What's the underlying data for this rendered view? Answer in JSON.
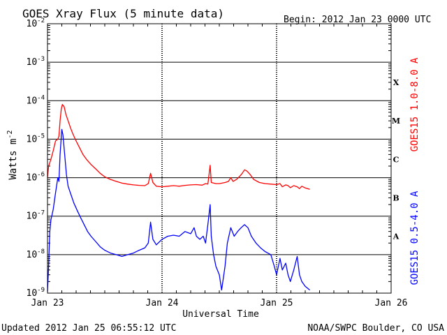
{
  "chart_data": {
    "type": "line",
    "title": "GOES Xray Flux (5 minute data)",
    "begin_label": "Begin:  2012 Jan 23 0000 UTC",
    "xlabel": "Universal Time",
    "ylabel_base": "Watts m",
    "ylabel_exp": "-2",
    "updated_label": "Updated 2012 Jan 25 06:55:12 UTC",
    "credit_label": "NOAA/SWPC Boulder, CO USA",
    "y_scale": "log",
    "ylim": [
      1e-09,
      0.01
    ],
    "xlim": [
      "2012-01-23",
      "2012-01-26"
    ],
    "grid": "horizontal lines at each decade; dashed vertical lines at day boundaries",
    "x_ticks": [
      {
        "label": "Jan 23",
        "day": 0
      },
      {
        "label": "Jan 24",
        "day": 1
      },
      {
        "label": "Jan 25",
        "day": 2
      },
      {
        "label": "Jan 26",
        "day": 3
      }
    ],
    "y_ticks": [
      {
        "base": "10",
        "exp": "-2",
        "value": 0.01
      },
      {
        "base": "10",
        "exp": "-3",
        "value": 0.001
      },
      {
        "base": "10",
        "exp": "-4",
        "value": 0.0001
      },
      {
        "base": "10",
        "exp": "-5",
        "value": 1e-05
      },
      {
        "base": "10",
        "exp": "-6",
        "value": 1e-06
      },
      {
        "base": "10",
        "exp": "-7",
        "value": 1e-07
      },
      {
        "base": "10",
        "exp": "-8",
        "value": 1e-08
      },
      {
        "base": "10",
        "exp": "-9",
        "value": 1e-09
      }
    ],
    "flare_classes": [
      {
        "label": "X",
        "value": 0.0003
      },
      {
        "label": "M",
        "value": 3e-05
      },
      {
        "label": "C",
        "value": 3e-06
      },
      {
        "label": "B",
        "value": 3e-07
      },
      {
        "label": "A",
        "value": 3e-08
      }
    ],
    "series": [
      {
        "name": "GOES15 1.0-8.0 A",
        "color": "#ff0000",
        "x_unit": "days since 2012-01-23 00:00 UTC",
        "points": [
          [
            0.0,
            1e-06
          ],
          [
            0.01,
            2e-06
          ],
          [
            0.03,
            3e-06
          ],
          [
            0.05,
            5e-06
          ],
          [
            0.07,
            9e-06
          ],
          [
            0.09,
            1e-05
          ],
          [
            0.1,
            1.2e-05
          ],
          [
            0.11,
            3e-05
          ],
          [
            0.12,
            6e-05
          ],
          [
            0.13,
            8e-05
          ],
          [
            0.145,
            7e-05
          ],
          [
            0.16,
            4.5e-05
          ],
          [
            0.18,
            3e-05
          ],
          [
            0.2,
            2e-05
          ],
          [
            0.22,
            1.4e-05
          ],
          [
            0.25,
            9e-06
          ],
          [
            0.28,
            6e-06
          ],
          [
            0.31,
            4e-06
          ],
          [
            0.34,
            3e-06
          ],
          [
            0.38,
            2.2e-06
          ],
          [
            0.42,
            1.7e-06
          ],
          [
            0.46,
            1.3e-06
          ],
          [
            0.5,
            1.05e-06
          ],
          [
            0.55,
            9e-07
          ],
          [
            0.6,
            8e-07
          ],
          [
            0.65,
            7.2e-07
          ],
          [
            0.7,
            6.8e-07
          ],
          [
            0.75,
            6.5e-07
          ],
          [
            0.8,
            6.3e-07
          ],
          [
            0.85,
            6.2e-07
          ],
          [
            0.88,
            7e-07
          ],
          [
            0.9,
            1.3e-06
          ],
          [
            0.92,
            7.5e-07
          ],
          [
            0.95,
            6e-07
          ],
          [
            1.0,
            5.8e-07
          ],
          [
            1.05,
            6e-07
          ],
          [
            1.1,
            6.2e-07
          ],
          [
            1.15,
            6e-07
          ],
          [
            1.2,
            6.3e-07
          ],
          [
            1.25,
            6.5e-07
          ],
          [
            1.3,
            6.6e-07
          ],
          [
            1.35,
            6.4e-07
          ],
          [
            1.38,
            7e-07
          ],
          [
            1.4,
            6.8e-07
          ],
          [
            1.42,
            2.1e-06
          ],
          [
            1.43,
            7.5e-07
          ],
          [
            1.47,
            7e-07
          ],
          [
            1.5,
            7e-07
          ],
          [
            1.55,
            7.5e-07
          ],
          [
            1.58,
            8e-07
          ],
          [
            1.6,
            1e-06
          ],
          [
            1.62,
            8e-07
          ],
          [
            1.65,
            9e-07
          ],
          [
            1.68,
            1.1e-06
          ],
          [
            1.7,
            1.3e-06
          ],
          [
            1.72,
            1.6e-06
          ],
          [
            1.74,
            1.5e-06
          ],
          [
            1.77,
            1.2e-06
          ],
          [
            1.8,
            9e-07
          ],
          [
            1.85,
            7.5e-07
          ],
          [
            1.9,
            7e-07
          ],
          [
            1.95,
            6.8e-07
          ],
          [
            2.0,
            6.6e-07
          ],
          [
            2.03,
            7e-07
          ],
          [
            2.05,
            5.8e-07
          ],
          [
            2.08,
            6.5e-07
          ],
          [
            2.1,
            6.2e-07
          ],
          [
            2.12,
            5.5e-07
          ],
          [
            2.15,
            6.2e-07
          ],
          [
            2.18,
            5.8e-07
          ],
          [
            2.2,
            5.2e-07
          ],
          [
            2.22,
            6e-07
          ],
          [
            2.25,
            5.4e-07
          ],
          [
            2.29,
            5e-07
          ]
        ]
      },
      {
        "name": "GOES15 0.5-4.0 A",
        "color": "#0000ff",
        "x_unit": "days since 2012-01-23 00:00 UTC",
        "points": [
          [
            0.0,
            1.1e-09
          ],
          [
            0.01,
            5e-09
          ],
          [
            0.02,
            4e-08
          ],
          [
            0.03,
            8e-08
          ],
          [
            0.05,
            1.5e-07
          ],
          [
            0.07,
            4e-07
          ],
          [
            0.09,
            1e-06
          ],
          [
            0.1,
            8e-07
          ],
          [
            0.11,
            4e-06
          ],
          [
            0.125,
            1.8e-05
          ],
          [
            0.135,
            1.3e-05
          ],
          [
            0.15,
            4e-06
          ],
          [
            0.165,
            1.2e-06
          ],
          [
            0.18,
            6e-07
          ],
          [
            0.2,
            4e-07
          ],
          [
            0.23,
            2.2e-07
          ],
          [
            0.26,
            1.4e-07
          ],
          [
            0.29,
            9e-08
          ],
          [
            0.32,
            6e-08
          ],
          [
            0.35,
            4e-08
          ],
          [
            0.38,
            3e-08
          ],
          [
            0.42,
            2.2e-08
          ],
          [
            0.46,
            1.6e-08
          ],
          [
            0.5,
            1.3e-08
          ],
          [
            0.55,
            1.1e-08
          ],
          [
            0.6,
            1e-08
          ],
          [
            0.65,
            9e-09
          ],
          [
            0.7,
            1e-08
          ],
          [
            0.75,
            1.1e-08
          ],
          [
            0.8,
            1.3e-08
          ],
          [
            0.85,
            1.5e-08
          ],
          [
            0.88,
            2e-08
          ],
          [
            0.9,
            7e-08
          ],
          [
            0.92,
            2.5e-08
          ],
          [
            0.95,
            1.8e-08
          ],
          [
            1.0,
            2.5e-08
          ],
          [
            1.05,
            3e-08
          ],
          [
            1.1,
            3.2e-08
          ],
          [
            1.15,
            3e-08
          ],
          [
            1.2,
            4e-08
          ],
          [
            1.25,
            3.5e-08
          ],
          [
            1.28,
            5e-08
          ],
          [
            1.3,
            3e-08
          ],
          [
            1.33,
            2.5e-08
          ],
          [
            1.36,
            3e-08
          ],
          [
            1.38,
            2e-08
          ],
          [
            1.4,
            6e-08
          ],
          [
            1.42,
            2e-07
          ],
          [
            1.43,
            3e-08
          ],
          [
            1.45,
            1e-08
          ],
          [
            1.47,
            5e-09
          ],
          [
            1.5,
            3e-09
          ],
          [
            1.52,
            1.2e-09
          ],
          [
            1.55,
            5e-09
          ],
          [
            1.57,
            2e-08
          ],
          [
            1.6,
            5e-08
          ],
          [
            1.63,
            3e-08
          ],
          [
            1.66,
            4e-08
          ],
          [
            1.69,
            5e-08
          ],
          [
            1.72,
            6e-08
          ],
          [
            1.75,
            5e-08
          ],
          [
            1.78,
            3e-08
          ],
          [
            1.82,
            2e-08
          ],
          [
            1.86,
            1.5e-08
          ],
          [
            1.9,
            1.2e-08
          ],
          [
            1.95,
            1e-08
          ],
          [
            1.98,
            5e-09
          ],
          [
            2.0,
            3e-09
          ],
          [
            2.03,
            8e-09
          ],
          [
            2.05,
            4e-09
          ],
          [
            2.08,
            6e-09
          ],
          [
            2.1,
            3e-09
          ],
          [
            2.12,
            2e-09
          ],
          [
            2.15,
            4e-09
          ],
          [
            2.18,
            9e-09
          ],
          [
            2.2,
            3e-09
          ],
          [
            2.22,
            2e-09
          ],
          [
            2.25,
            1.5e-09
          ],
          [
            2.29,
            1.2e-09
          ]
        ]
      }
    ]
  }
}
